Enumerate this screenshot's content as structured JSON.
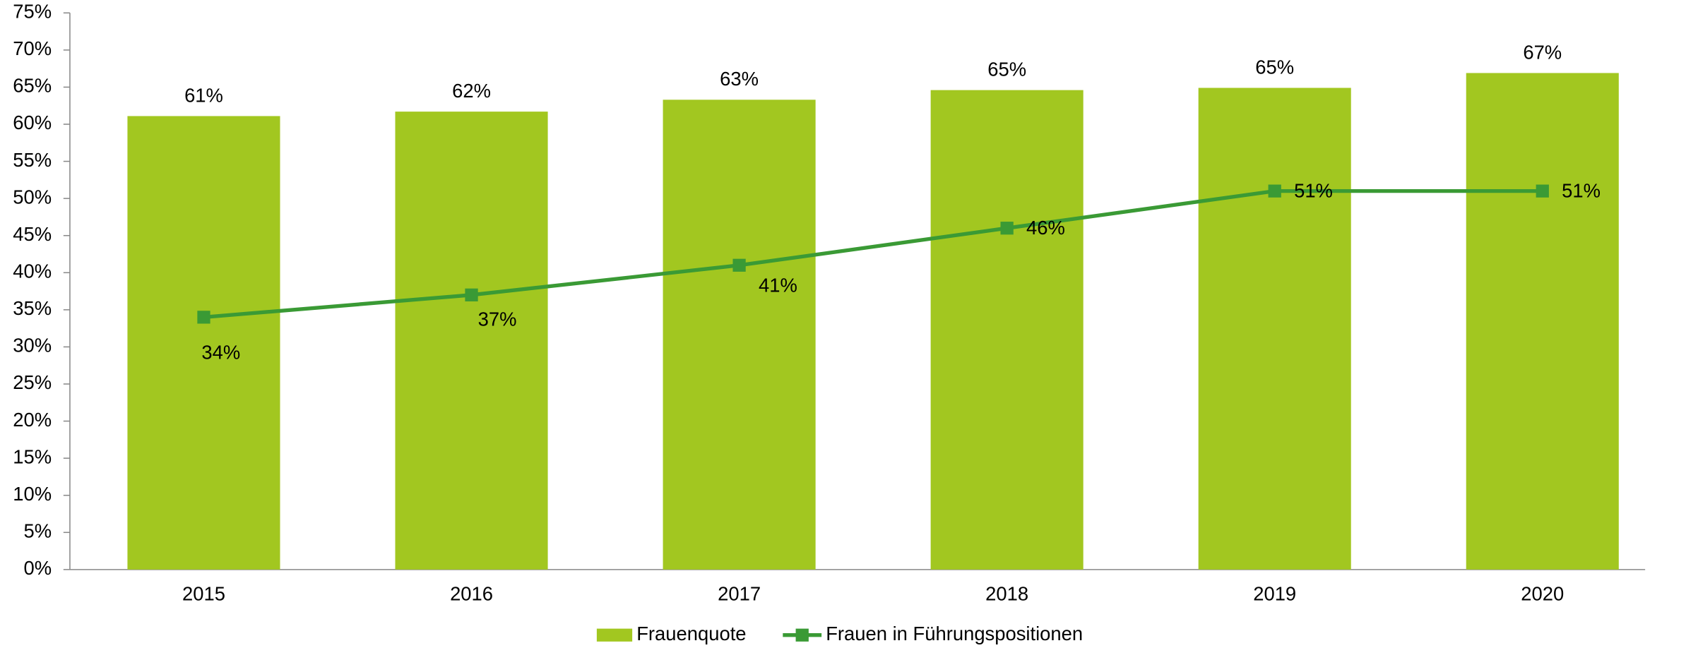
{
  "chart_data": {
    "type": "bar",
    "categories": [
      "2015",
      "2016",
      "2017",
      "2018",
      "2019",
      "2020"
    ],
    "series": [
      {
        "name": "Frauenquote",
        "type": "bar",
        "color": "#a2c720",
        "values": [
          61.1,
          61.7,
          63.3,
          64.6,
          64.9,
          66.9
        ],
        "value_labels": [
          "61%",
          "62%",
          "63%",
          "65%",
          "65%",
          "67%"
        ]
      },
      {
        "name": "Frauen in Führungspositionen",
        "type": "line",
        "color": "#3a9a35",
        "values": [
          34,
          37,
          41,
          46,
          51,
          51
        ],
        "value_labels": [
          "34%",
          "37%",
          "41%",
          "46%",
          "51%",
          "51%"
        ]
      }
    ],
    "ylim": [
      0,
      75
    ],
    "yticks": [
      {
        "value": 0,
        "label": "0%"
      },
      {
        "value": 5,
        "label": "5%"
      },
      {
        "value": 10,
        "label": "10%"
      },
      {
        "value": 15,
        "label": "15%"
      },
      {
        "value": 20,
        "label": "20%"
      },
      {
        "value": 25,
        "label": "25%"
      },
      {
        "value": 30,
        "label": "30%"
      },
      {
        "value": 35,
        "label": "35%"
      },
      {
        "value": 40,
        "label": "40%"
      },
      {
        "value": 45,
        "label": "45%"
      },
      {
        "value": 50,
        "label": "50%"
      },
      {
        "value": 55,
        "label": "55%"
      },
      {
        "value": 60,
        "label": "60%"
      },
      {
        "value": 65,
        "label": "65%"
      },
      {
        "value": 70,
        "label": "70%"
      },
      {
        "value": 75,
        "label": "75%"
      }
    ],
    "legend": "bottom"
  }
}
